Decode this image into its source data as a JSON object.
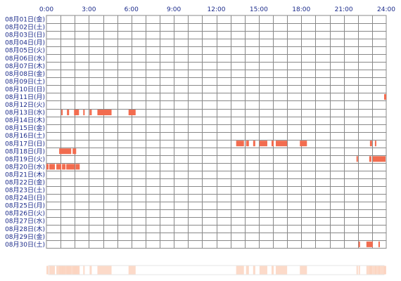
{
  "chart_data": {
    "type": "heatmap",
    "x_axis": {
      "unit": "hour",
      "range": [
        0,
        24
      ],
      "tick_labels": [
        "0:00",
        "3:00",
        "6:00",
        "9:00",
        "12:00",
        "15:00",
        "18:00",
        "21:00",
        "24:00"
      ]
    },
    "rows": [
      "08月01日(金)",
      "08月02日(土)",
      "08月03日(日)",
      "08月04日(月)",
      "08月05日(火)",
      "08月06日(水)",
      "08月07日(木)",
      "08月08日(金)",
      "08月09日(土)",
      "08月10日(日)",
      "08月11日(月)",
      "08月12日(火)",
      "08月13日(水)",
      "08月14日(木)",
      "08月15日(金)",
      "08月16日(土)",
      "08月17日(日)",
      "08月18日(月)",
      "08月19日(火)",
      "08月20日(水)",
      "08月21日(木)",
      "08月22日(金)",
      "08月23日(土)",
      "08月24日(日)",
      "08月25日(月)",
      "08月26日(火)",
      "08月27日(水)",
      "08月28日(木)",
      "08月29日(金)",
      "08月30日(土)"
    ],
    "activity": [
      [],
      [],
      [],
      [],
      [],
      [],
      [],
      [],
      [],
      [],
      [
        [
          23.85,
          24.0
        ]
      ],
      [],
      [
        [
          1.05,
          1.15
        ],
        [
          1.45,
          1.6
        ],
        [
          1.95,
          2.3
        ],
        [
          2.6,
          2.7
        ],
        [
          3.05,
          3.2
        ],
        [
          3.6,
          4.6
        ],
        [
          5.8,
          6.3
        ]
      ],
      [],
      [],
      [],
      [
        [
          13.4,
          13.95
        ],
        [
          14.1,
          14.3
        ],
        [
          14.6,
          14.75
        ],
        [
          15.05,
          15.6
        ],
        [
          15.9,
          16.05
        ],
        [
          16.2,
          17.0
        ],
        [
          17.9,
          18.4
        ],
        [
          22.85,
          23.0
        ],
        [
          23.2,
          23.3
        ]
      ],
      [
        [
          0.9,
          1.75
        ],
        [
          1.85,
          2.1
        ]
      ],
      [
        [
          21.9,
          22.0
        ],
        [
          22.8,
          22.95
        ],
        [
          23.05,
          23.95
        ]
      ],
      [
        [
          0.0,
          0.15
        ],
        [
          0.2,
          0.6
        ],
        [
          0.7,
          1.05
        ],
        [
          1.1,
          1.35
        ],
        [
          1.4,
          2.0
        ],
        [
          2.05,
          2.35
        ]
      ],
      [],
      [],
      [],
      [],
      [],
      [],
      [],
      [],
      [],
      [
        [
          22.05,
          22.15
        ],
        [
          22.6,
          23.05
        ],
        [
          23.45,
          23.55
        ]
      ]
    ],
    "summary_strip_color": "#fbd3bf",
    "colors": {
      "activity": "#f26c4f",
      "grid": "#888888",
      "labels": "#1a2a8a"
    }
  }
}
